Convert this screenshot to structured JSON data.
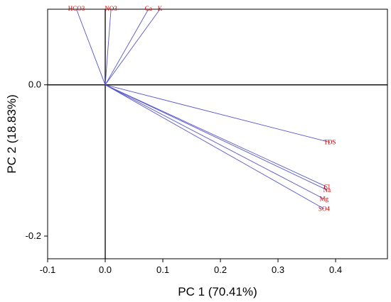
{
  "chart_data": {
    "type": "biplot",
    "title": "",
    "xlabel": "PC 1 (70.41%)",
    "ylabel": "PC 2 (18.83%)",
    "xlim": [
      -0.1,
      0.49
    ],
    "ylim": [
      -0.23,
      0.1
    ],
    "x_ticks": [
      -0.1,
      0.0,
      0.1,
      0.2,
      0.3,
      0.4
    ],
    "x_tick_labels": [
      "-0.1",
      "0.0",
      "0.1",
      "0.2",
      "0.3",
      "0.4"
    ],
    "y_ticks": [
      0.0,
      -0.2
    ],
    "y_tick_labels": [
      "0.0",
      "-0.2"
    ],
    "reference_lines": {
      "x": 0,
      "y": 0
    },
    "grid": false,
    "line_color": "#5555cc",
    "label_color": "#cc0000",
    "vectors": [
      {
        "name": "HCO3",
        "x": -0.05,
        "y": 0.1
      },
      {
        "name": "NO3",
        "x": 0.01,
        "y": 0.1
      },
      {
        "name": "Ca",
        "x": 0.075,
        "y": 0.1
      },
      {
        "name": "K",
        "x": 0.095,
        "y": 0.1
      },
      {
        "name": "TDS",
        "x": 0.39,
        "y": -0.076
      },
      {
        "name": "Cl",
        "x": 0.385,
        "y": -0.135
      },
      {
        "name": "Na",
        "x": 0.385,
        "y": -0.139
      },
      {
        "name": "Mg",
        "x": 0.38,
        "y": -0.151
      },
      {
        "name": "SO4",
        "x": 0.38,
        "y": -0.164
      }
    ]
  }
}
